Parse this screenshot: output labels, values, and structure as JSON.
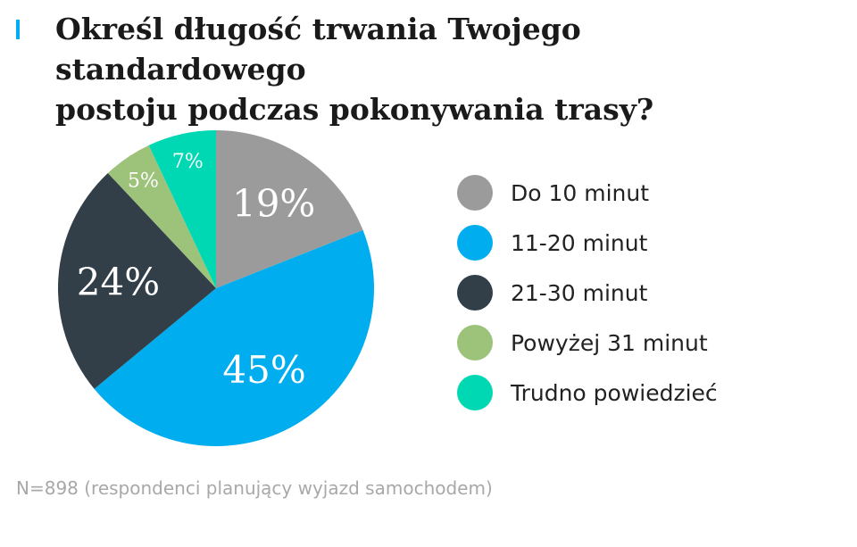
{
  "header": {
    "title_line1": "Określ długość trwania Twojego standardowego",
    "title_line2": "postoju podczas pokonywania trasy?"
  },
  "chart_data": {
    "type": "pie",
    "title": "Określ długość trwania Twojego standardowego postoju podczas pokonywania trasy?",
    "categories": [
      "Do 10 minut",
      "11-20 minut",
      "21-30 minut",
      "Powyżej 31 minut",
      "Trudno powiedzieć"
    ],
    "values": [
      19,
      45,
      24,
      5,
      7
    ],
    "labels": [
      "19%",
      "45%",
      "24%",
      "5%",
      "7%"
    ],
    "colors": [
      "#9b9b9b",
      "#00adee",
      "#323e48",
      "#9dc37a",
      "#00d8b3"
    ],
    "legend_position": "right"
  },
  "footnote": "N=898 (respondenci planujący wyjazd samochodem)"
}
